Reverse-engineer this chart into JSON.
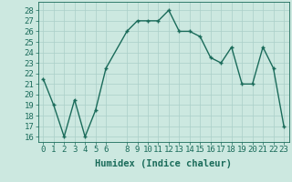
{
  "x": [
    0,
    1,
    2,
    3,
    4,
    5,
    6,
    8,
    9,
    10,
    11,
    12,
    13,
    14,
    15,
    16,
    17,
    18,
    19,
    20,
    21,
    22,
    23
  ],
  "y": [
    21.5,
    19,
    16,
    19.5,
    16,
    18.5,
    22.5,
    26,
    27,
    27,
    27,
    28,
    26,
    26,
    25.5,
    23.5,
    23,
    24.5,
    21,
    21,
    24.5,
    22.5,
    17
  ],
  "line_color": "#1a6b5a",
  "bg_color": "#cce8e0",
  "grid_color": "#aacfc8",
  "xlabel": "Humidex (Indice chaleur)",
  "ylim": [
    15.5,
    28.8
  ],
  "xlim": [
    -0.5,
    23.5
  ],
  "yticks": [
    16,
    17,
    18,
    19,
    20,
    21,
    22,
    23,
    24,
    25,
    26,
    27,
    28
  ],
  "xticks": [
    0,
    1,
    2,
    3,
    4,
    5,
    6,
    8,
    9,
    10,
    11,
    12,
    13,
    14,
    15,
    16,
    17,
    18,
    19,
    20,
    21,
    22,
    23
  ],
  "xlabel_fontsize": 7.5,
  "tick_fontsize": 6.5,
  "marker_size": 3.5,
  "line_width": 1.0
}
